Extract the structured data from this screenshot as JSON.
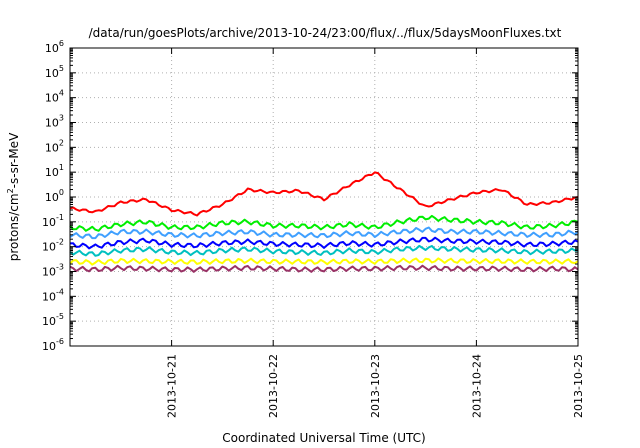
{
  "chart_data": {
    "type": "line",
    "title": "/data/run/goesPlots/archive/2013-10-24/23:00/flux/../flux/5daysMoonFluxes.txt",
    "xlabel": "Coordinated Universal Time (UTC)",
    "ylabel": {
      "base": "protons/cm",
      "sup": "2",
      "rest": "-s-sr-MeV"
    },
    "yscale": "log",
    "ylim": [
      1e-06,
      1000000.0
    ],
    "xlim": [
      "2013-10-20",
      "2013-10-25"
    ],
    "grid": true,
    "xticks": [
      "2013-10-21",
      "2013-10-22",
      "2013-10-23",
      "2013-10-24",
      "2013-10-25"
    ],
    "yticks": [
      {
        "value": 1e-06,
        "base": "10",
        "exp": "-6"
      },
      {
        "value": 1e-05,
        "base": "10",
        "exp": "-5"
      },
      {
        "value": 0.0001,
        "base": "10",
        "exp": "-4"
      },
      {
        "value": 0.001,
        "base": "10",
        "exp": "-3"
      },
      {
        "value": 0.01,
        "base": "10",
        "exp": "-2"
      },
      {
        "value": 0.1,
        "base": "10",
        "exp": "-1"
      },
      {
        "value": 1.0,
        "base": "10",
        "exp": "0"
      },
      {
        "value": 10.0,
        "base": "10",
        "exp": "1"
      },
      {
        "value": 100.0,
        "base": "10",
        "exp": "2"
      },
      {
        "value": 1000.0,
        "base": "10",
        "exp": "3"
      },
      {
        "value": 10000.0,
        "base": "10",
        "exp": "4"
      },
      {
        "value": 100000.0,
        "base": "10",
        "exp": "5"
      },
      {
        "value": 1000000.0,
        "base": "10",
        "exp": "6"
      }
    ],
    "x": [
      "2013-10-20T00:00",
      "2013-10-20T06:00",
      "2013-10-20T12:00",
      "2013-10-20T18:00",
      "2013-10-21T00:00",
      "2013-10-21T06:00",
      "2013-10-21T12:00",
      "2013-10-21T18:00",
      "2013-10-22T00:00",
      "2013-10-22T06:00",
      "2013-10-22T12:00",
      "2013-10-22T18:00",
      "2013-10-23T00:00",
      "2013-10-23T06:00",
      "2013-10-23T12:00",
      "2013-10-23T18:00",
      "2013-10-24T00:00",
      "2013-10-24T06:00",
      "2013-10-24T12:00",
      "2013-10-24T18:00",
      "2013-10-25T00:00"
    ],
    "series": [
      {
        "color": "#ff0000",
        "values": [
          0.35,
          0.25,
          0.6,
          0.8,
          0.3,
          0.2,
          0.5,
          2.0,
          1.5,
          1.8,
          0.8,
          3.0,
          10.0,
          2.0,
          0.4,
          0.8,
          1.5,
          2.0,
          0.5,
          0.6,
          1.0
        ]
      },
      {
        "color": "#00ee00",
        "values": [
          0.06,
          0.05,
          0.08,
          0.1,
          0.06,
          0.06,
          0.09,
          0.1,
          0.07,
          0.07,
          0.06,
          0.08,
          0.06,
          0.1,
          0.15,
          0.12,
          0.1,
          0.09,
          0.06,
          0.07,
          0.1
        ]
      },
      {
        "color": "#40a0ff",
        "values": [
          0.03,
          0.025,
          0.04,
          0.04,
          0.03,
          0.028,
          0.035,
          0.04,
          0.03,
          0.03,
          0.028,
          0.035,
          0.03,
          0.04,
          0.05,
          0.04,
          0.04,
          0.035,
          0.03,
          0.03,
          0.04
        ]
      },
      {
        "color": "#0000ff",
        "values": [
          0.012,
          0.01,
          0.015,
          0.018,
          0.012,
          0.011,
          0.014,
          0.016,
          0.013,
          0.012,
          0.011,
          0.014,
          0.012,
          0.016,
          0.02,
          0.017,
          0.016,
          0.015,
          0.012,
          0.013,
          0.016
        ]
      },
      {
        "color": "#00c0c0",
        "values": [
          0.006,
          0.005,
          0.007,
          0.008,
          0.006,
          0.0055,
          0.007,
          0.008,
          0.0065,
          0.006,
          0.0055,
          0.007,
          0.006,
          0.008,
          0.009,
          0.008,
          0.0075,
          0.007,
          0.006,
          0.0065,
          0.007
        ]
      },
      {
        "color": "#ffff00",
        "values": [
          0.0025,
          0.0023,
          0.0027,
          0.0026,
          0.0025,
          0.0024,
          0.0026,
          0.0027,
          0.0025,
          0.0025,
          0.0024,
          0.0026,
          0.0025,
          0.0027,
          0.0028,
          0.0027,
          0.0026,
          0.0026,
          0.0025,
          0.0025,
          0.0026
        ]
      },
      {
        "color": "#993366",
        "values": [
          0.0013,
          0.0012,
          0.0014,
          0.0013,
          0.0012,
          0.0012,
          0.0013,
          0.0014,
          0.0013,
          0.0012,
          0.0012,
          0.0013,
          0.0013,
          0.0014,
          0.0014,
          0.0013,
          0.0013,
          0.0013,
          0.0012,
          0.0013,
          0.0012
        ]
      }
    ]
  }
}
